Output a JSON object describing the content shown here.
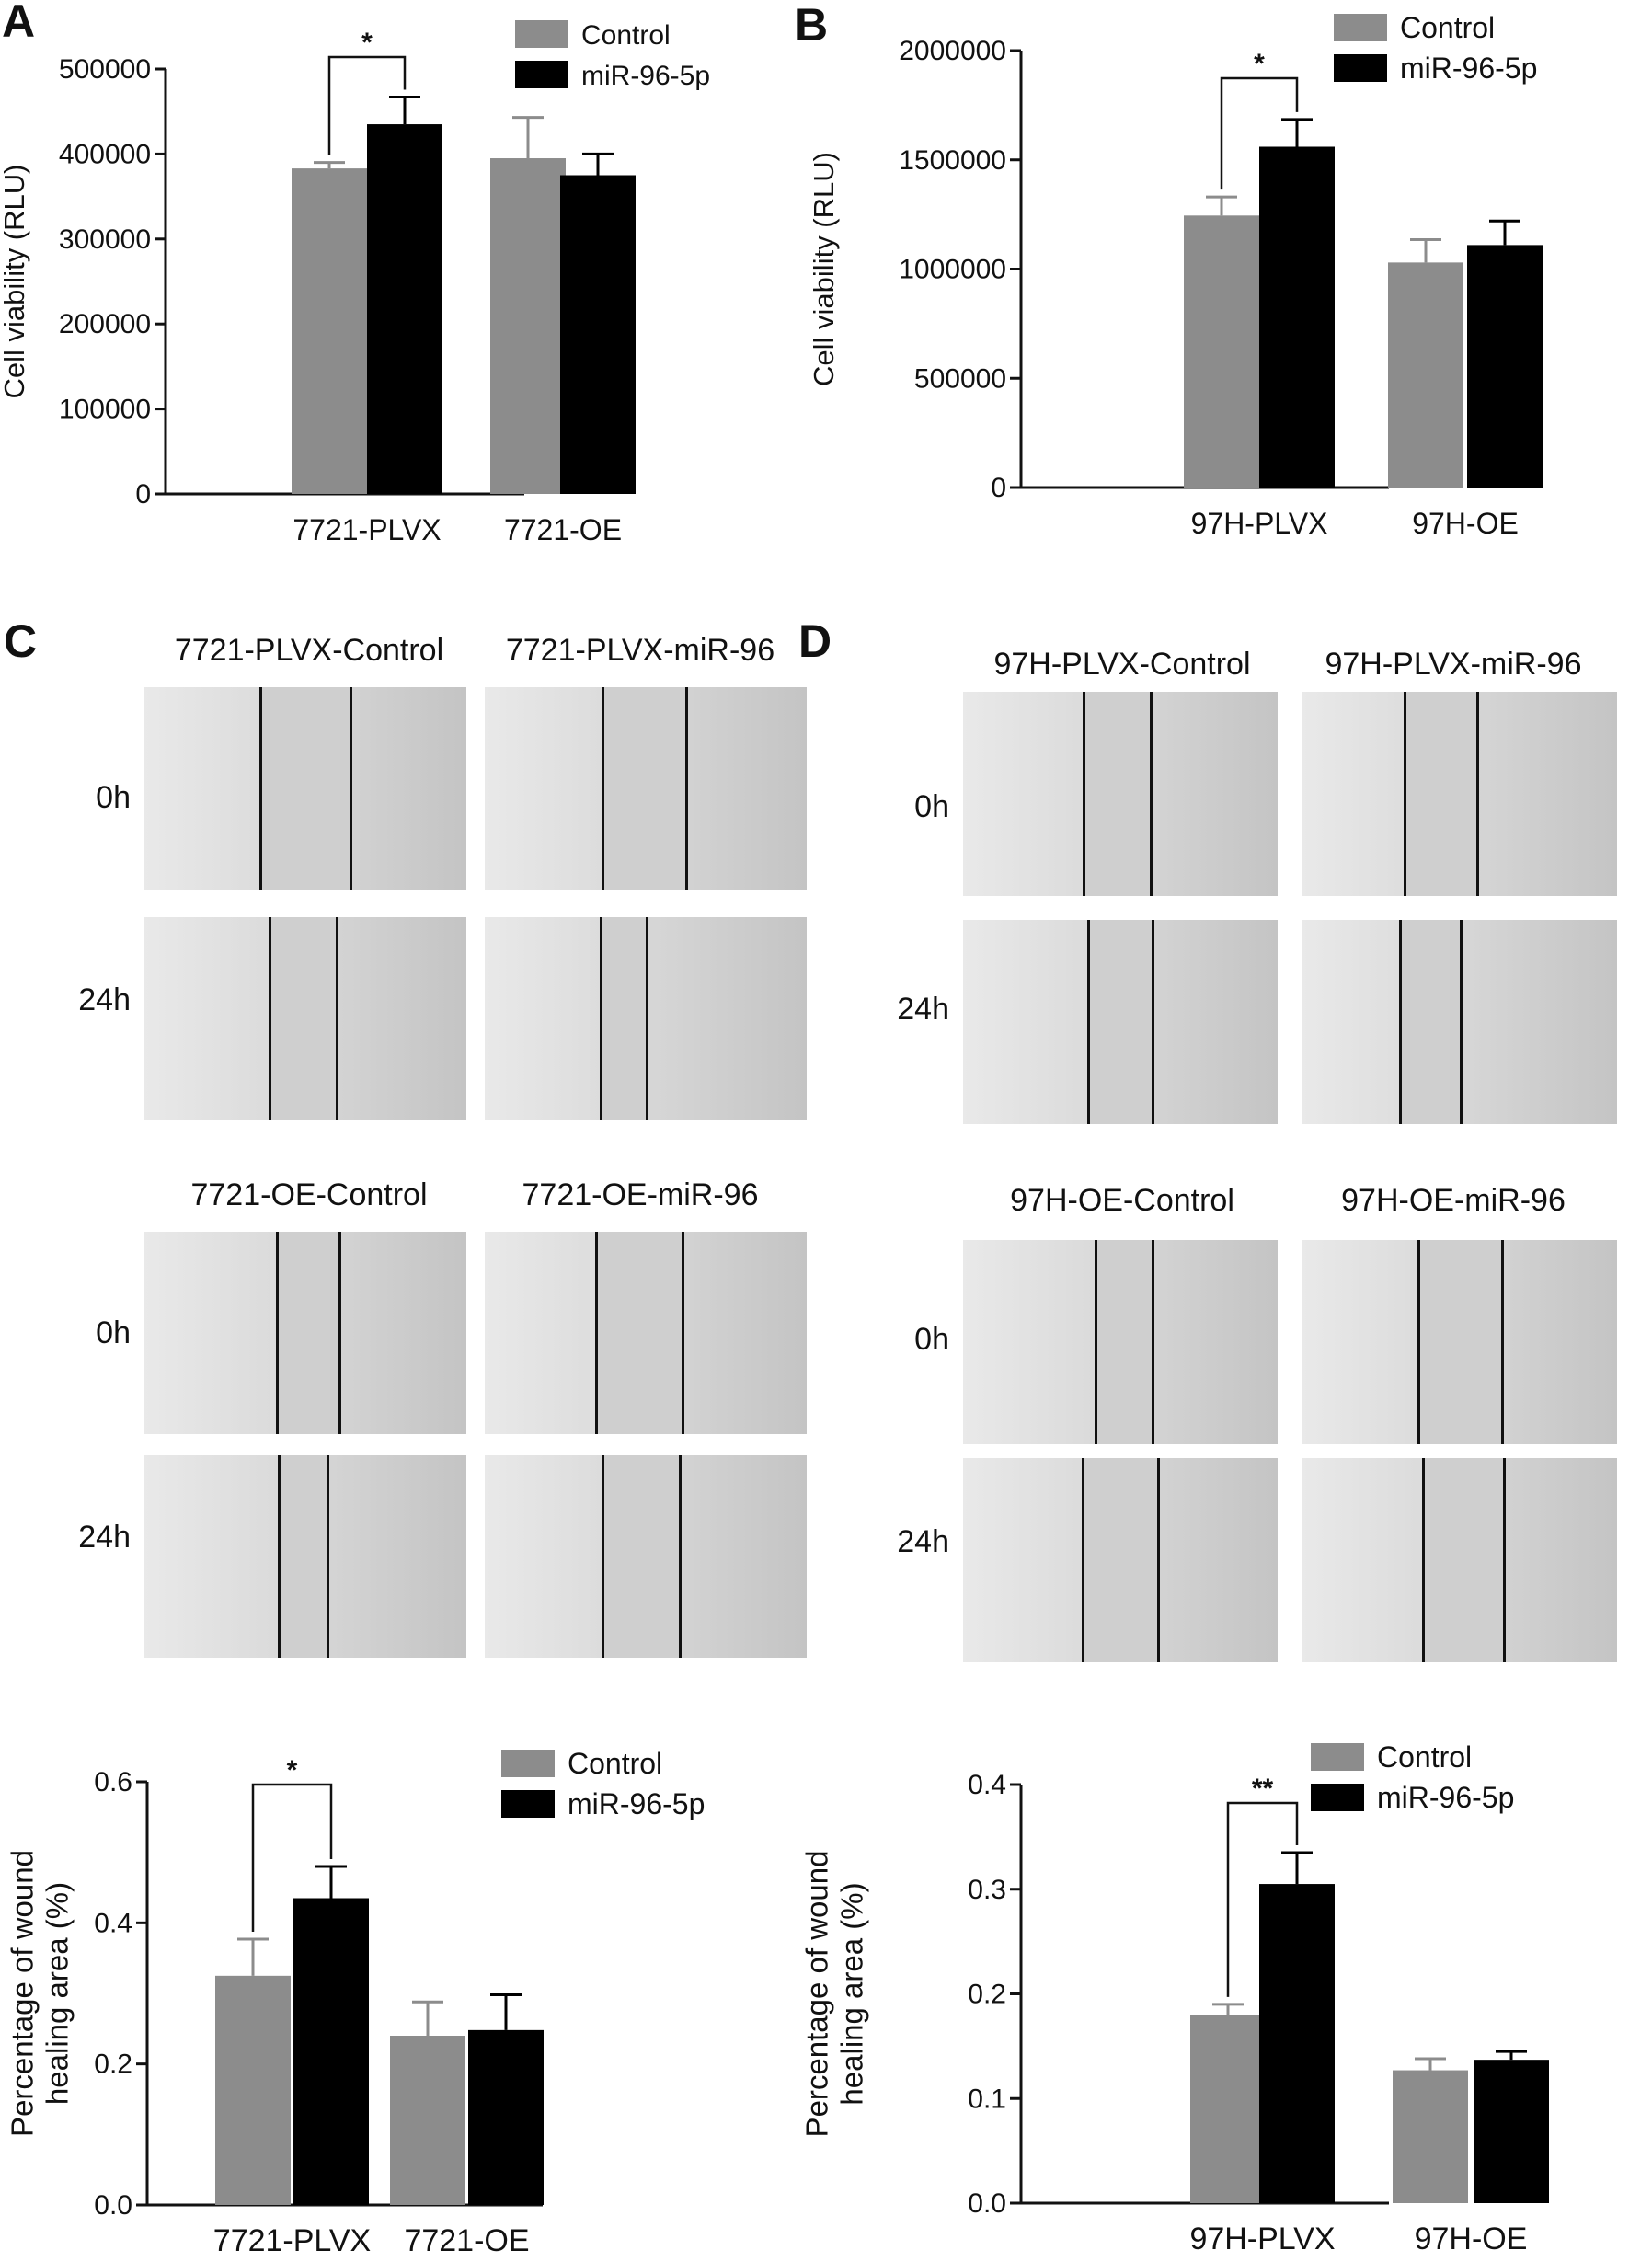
{
  "panel_labels": [
    "A",
    "B",
    "C",
    "D"
  ],
  "legend": [
    "Control",
    "miR-96-5p"
  ],
  "colors": {
    "control": "#8c8c8c",
    "mir": "#000000",
    "axis": "#111111",
    "micro_bg": "#d9d9d9",
    "gap": "#cfcfcf"
  },
  "chart_data": [
    {
      "type": "bar",
      "panel": "A",
      "categories": [
        "7721-PLVX",
        "7721-OE"
      ],
      "series": [
        {
          "name": "Control",
          "values": [
            383000,
            395000
          ],
          "errors": [
            7000,
            48000
          ]
        },
        {
          "name": "miR-96-5p",
          "values": [
            435000,
            375000
          ],
          "errors": [
            32000,
            25000
          ]
        }
      ],
      "ylabel": "Cell viability (RLU)",
      "ylim": [
        0,
        500000
      ],
      "yticks": [
        "0",
        "100000",
        "200000",
        "300000",
        "400000",
        "500000"
      ],
      "significance": "*",
      "legend_position": "top-right"
    },
    {
      "type": "bar",
      "panel": "B",
      "categories": [
        "97H-PLVX",
        "97H-OE"
      ],
      "series": [
        {
          "name": "Control",
          "values": [
            1245000,
            1030000
          ],
          "errors": [
            85000,
            105000
          ]
        },
        {
          "name": "miR-96-5p",
          "values": [
            1560000,
            1110000
          ],
          "errors": [
            125000,
            110000
          ]
        }
      ],
      "ylabel": "Cell viability (RLU)",
      "ylim": [
        0,
        2000000
      ],
      "yticks": [
        "0",
        "500000",
        "1000000",
        "1500000",
        "2000000"
      ],
      "significance": "*",
      "legend_position": "top-right"
    },
    {
      "type": "bar",
      "panel": "C",
      "categories": [
        "7721-PLVX",
        "7721-OE"
      ],
      "series": [
        {
          "name": "Control",
          "values": [
            0.325,
            0.24
          ],
          "errors": [
            0.052,
            0.048
          ]
        },
        {
          "name": "miR-96-5p",
          "values": [
            0.435,
            0.248
          ],
          "errors": [
            0.045,
            0.05
          ]
        }
      ],
      "ylabel": "Percentage of wound healing area (%)",
      "ylim": [
        0,
        0.6
      ],
      "yticks": [
        "0.0",
        "0.2",
        "0.4",
        "0.6"
      ],
      "significance": "*",
      "legend_position": "top-right"
    },
    {
      "type": "bar",
      "panel": "D",
      "categories": [
        "97H-PLVX",
        "97H-OE"
      ],
      "series": [
        {
          "name": "Control",
          "values": [
            0.18,
            0.127
          ],
          "errors": [
            0.01,
            0.011
          ]
        },
        {
          "name": "miR-96-5p",
          "values": [
            0.305,
            0.137
          ],
          "errors": [
            0.03,
            0.008
          ]
        }
      ],
      "ylabel": "Percentage of wound healing area (%)",
      "ylim": [
        0,
        0.4
      ],
      "yticks": [
        "0.0",
        "0.1",
        "0.2",
        "0.3",
        "0.4"
      ],
      "significance": "**",
      "legend_position": "top-right"
    }
  ],
  "micrographs": {
    "C": {
      "top_titles": [
        "7721-PLVX-Control",
        "7721-PLVX-miR-96"
      ],
      "bottom_titles": [
        "7721-OE-Control",
        "7721-OE-miR-96"
      ],
      "times": [
        "0h",
        "24h"
      ]
    },
    "D": {
      "top_titles": [
        "97H-PLVX-Control",
        "97H-PLVX-miR-96"
      ],
      "bottom_titles": [
        "97H-OE-Control",
        "97H-OE-miR-96"
      ],
      "times": [
        "0h",
        "24h"
      ]
    }
  }
}
